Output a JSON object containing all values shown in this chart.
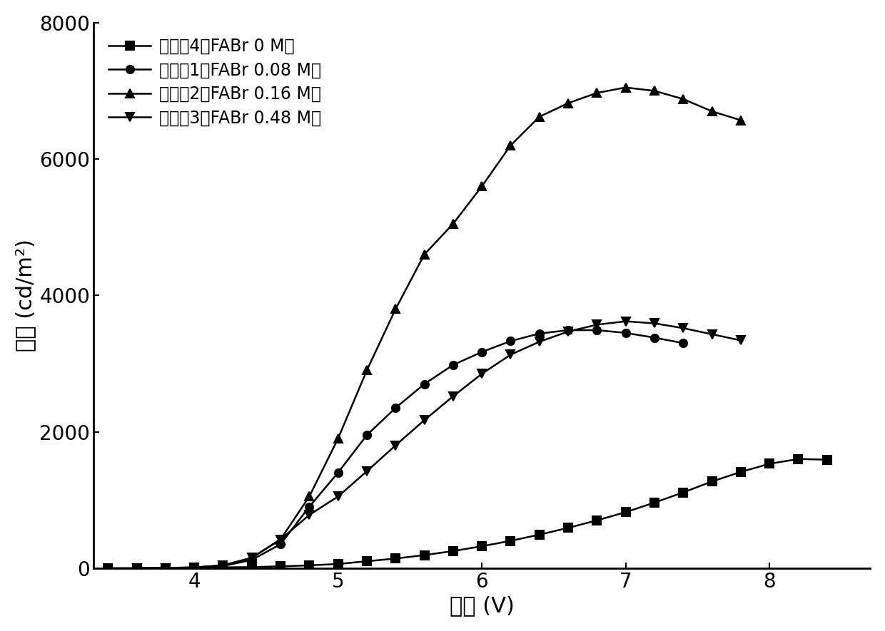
{
  "title": "",
  "xlabel": "电压 (V)",
  "ylabel": "亮度 (cd/m²)",
  "xlim": [
    3.3,
    8.7
  ],
  "ylim": [
    0,
    8000
  ],
  "yticks": [
    0,
    2000,
    4000,
    6000,
    8000
  ],
  "xticks": [
    4,
    5,
    6,
    7,
    8
  ],
  "series": [
    {
      "label": "实施例4（FABr 0 M）",
      "marker": "s",
      "x": [
        3.4,
        3.6,
        3.8,
        4.0,
        4.2,
        4.4,
        4.6,
        4.8,
        5.0,
        5.2,
        5.4,
        5.6,
        5.8,
        6.0,
        6.2,
        6.4,
        6.6,
        6.8,
        7.0,
        7.2,
        7.4,
        7.6,
        7.8,
        8.0,
        8.2,
        8.4
      ],
      "y": [
        0,
        0,
        2,
        5,
        10,
        15,
        25,
        40,
        60,
        100,
        140,
        190,
        250,
        320,
        400,
        490,
        590,
        700,
        820,
        960,
        1110,
        1270,
        1410,
        1530,
        1600,
        1590
      ]
    },
    {
      "label": "实施例1（FABr 0.08 M）",
      "marker": "o",
      "x": [
        3.6,
        3.8,
        4.0,
        4.2,
        4.4,
        4.6,
        4.8,
        5.0,
        5.2,
        5.4,
        5.6,
        5.8,
        6.0,
        6.2,
        6.4,
        6.6,
        6.8,
        7.0,
        7.2,
        7.4
      ],
      "y": [
        0,
        2,
        8,
        30,
        120,
        350,
        900,
        1400,
        1950,
        2350,
        2700,
        2980,
        3170,
        3330,
        3440,
        3490,
        3490,
        3450,
        3380,
        3300
      ]
    },
    {
      "label": "实施例2（FABr 0.16 M）",
      "marker": "^",
      "x": [
        3.6,
        3.8,
        4.0,
        4.2,
        4.4,
        4.6,
        4.8,
        5.0,
        5.2,
        5.4,
        5.6,
        5.8,
        6.0,
        6.2,
        6.4,
        6.6,
        6.8,
        7.0,
        7.2,
        7.4,
        7.6,
        7.8
      ],
      "y": [
        0,
        2,
        10,
        40,
        150,
        420,
        1050,
        1900,
        2900,
        3800,
        4600,
        5050,
        5600,
        6200,
        6620,
        6820,
        6970,
        7050,
        7000,
        6880,
        6700,
        6570
      ]
    },
    {
      "label": "实施例3（FABr 0.48 M）",
      "marker": "v",
      "x": [
        3.6,
        3.8,
        4.0,
        4.2,
        4.4,
        4.6,
        4.8,
        5.0,
        5.2,
        5.4,
        5.6,
        5.8,
        6.0,
        6.2,
        6.4,
        6.6,
        6.8,
        7.0,
        7.2,
        7.4,
        7.6,
        7.8
      ],
      "y": [
        0,
        2,
        10,
        40,
        150,
        420,
        780,
        1050,
        1420,
        1800,
        2170,
        2520,
        2850,
        3130,
        3320,
        3470,
        3570,
        3620,
        3590,
        3520,
        3430,
        3340
      ]
    }
  ],
  "color": "#000000",
  "linewidth": 1.8,
  "markersize": 8,
  "background_color": "#ffffff",
  "legend_loc": "upper left",
  "xlabel_fontsize": 22,
  "ylabel_fontsize": 22,
  "tick_fontsize": 20,
  "legend_fontsize": 17
}
